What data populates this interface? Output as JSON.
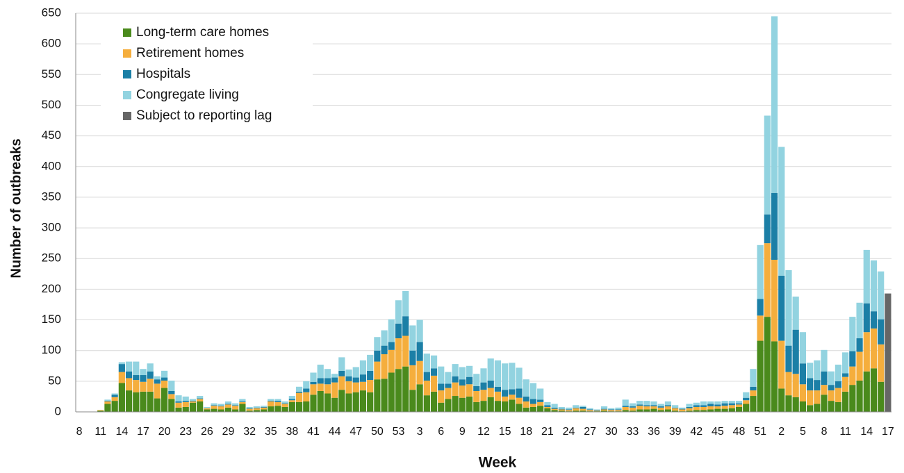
{
  "chart_data": {
    "type": "stacked-bar",
    "x_label": "Week",
    "y_label": "Number of outbreaks",
    "categories": [
      "8",
      null,
      null,
      "11",
      null,
      null,
      "14",
      null,
      null,
      "17",
      null,
      null,
      "20",
      null,
      null,
      "23",
      null,
      null,
      "26",
      null,
      null,
      "29",
      null,
      null,
      "32",
      null,
      null,
      "35",
      null,
      null,
      "38",
      null,
      null,
      "41",
      null,
      null,
      "44",
      null,
      null,
      "47",
      null,
      null,
      "50",
      null,
      null,
      "53",
      null,
      null,
      "3",
      null,
      null,
      "6",
      null,
      null,
      "9",
      null,
      null,
      "12",
      null,
      null,
      "15",
      null,
      null,
      "18",
      null,
      null,
      "21",
      null,
      null,
      "24",
      null,
      null,
      "27",
      null,
      null,
      "30",
      null,
      null,
      "33",
      null,
      null,
      "36",
      null,
      null,
      "39",
      null,
      null,
      "42",
      null,
      null,
      "45",
      null,
      null,
      "48",
      null,
      null,
      "51",
      null,
      null,
      "2",
      null,
      null,
      "5",
      null,
      null,
      "8",
      null,
      null,
      "11",
      null,
      null,
      "14",
      null,
      null,
      "17"
    ],
    "series": [
      {
        "name": "Long-term care homes",
        "color": "#4a8a1c",
        "values": [
          0,
          0,
          0,
          2,
          13,
          18,
          47,
          35,
          32,
          33,
          33,
          22,
          39,
          21,
          7,
          8,
          15,
          17,
          4,
          5,
          4,
          7,
          4,
          13,
          2,
          3,
          4,
          9,
          10,
          8,
          16,
          16,
          17,
          28,
          34,
          30,
          23,
          36,
          30,
          32,
          35,
          32,
          53,
          54,
          64,
          70,
          74,
          36,
          45,
          27,
          33,
          15,
          21,
          26,
          23,
          25,
          16,
          18,
          24,
          18,
          17,
          20,
          13,
          7,
          8,
          10,
          6,
          3,
          2,
          1,
          2,
          2,
          1,
          1,
          2,
          1,
          1,
          3,
          2,
          4,
          4,
          5,
          3,
          4,
          2,
          1,
          2,
          3,
          3,
          4,
          5,
          5,
          6,
          8,
          13,
          26,
          116,
          155,
          115,
          38,
          27,
          24,
          17,
          11,
          13,
          28,
          18,
          16,
          33,
          44,
          51,
          66,
          71,
          49,
          null
        ]
      },
      {
        "name": "Retirement homes",
        "color": "#f5ae3d",
        "values": [
          0,
          0,
          0,
          1,
          4,
          6,
          18,
          20,
          20,
          16,
          21,
          24,
          12,
          8,
          8,
          8,
          2,
          4,
          2,
          5,
          5,
          5,
          6,
          3,
          3,
          3,
          3,
          8,
          6,
          5,
          3,
          15,
          15,
          17,
          12,
          15,
          25,
          22,
          20,
          16,
          14,
          20,
          29,
          40,
          37,
          50,
          50,
          40,
          38,
          24,
          26,
          20,
          18,
          22,
          20,
          20,
          18,
          18,
          15,
          15,
          8,
          8,
          10,
          10,
          5,
          6,
          2,
          2,
          2,
          2,
          4,
          3,
          2,
          1,
          2,
          2,
          2,
          5,
          5,
          6,
          5,
          4,
          4,
          5,
          4,
          3,
          4,
          5,
          5,
          5,
          4,
          5,
          5,
          4,
          6,
          9,
          41,
          120,
          133,
          78,
          38,
          38,
          28,
          24,
          22,
          16,
          17,
          23,
          24,
          30,
          47,
          64,
          65,
          61,
          null
        ]
      },
      {
        "name": "Hospitals",
        "color": "#1b7fa6",
        "values": [
          0,
          0,
          0,
          0,
          1,
          4,
          13,
          11,
          8,
          11,
          12,
          7,
          5,
          5,
          2,
          2,
          1,
          1,
          0,
          1,
          1,
          1,
          1,
          1,
          1,
          1,
          1,
          1,
          2,
          1,
          2,
          2,
          6,
          4,
          9,
          10,
          8,
          9,
          8,
          8,
          12,
          15,
          18,
          14,
          13,
          24,
          32,
          24,
          31,
          14,
          12,
          11,
          7,
          10,
          10,
          12,
          8,
          12,
          12,
          8,
          11,
          9,
          15,
          8,
          8,
          4,
          3,
          2,
          1,
          1,
          1,
          3,
          1,
          1,
          1,
          1,
          1,
          2,
          2,
          2,
          2,
          2,
          2,
          2,
          1,
          1,
          2,
          3,
          3,
          4,
          3,
          4,
          3,
          2,
          4,
          6,
          27,
          47,
          109,
          106,
          43,
          72,
          34,
          20,
          17,
          22,
          9,
          11,
          6,
          25,
          22,
          47,
          28,
          41,
          null
        ]
      },
      {
        "name": "Congregate living",
        "color": "#92d3e0",
        "values": [
          0,
          0,
          0,
          0,
          2,
          2,
          3,
          16,
          22,
          10,
          13,
          5,
          11,
          17,
          10,
          7,
          3,
          4,
          2,
          3,
          3,
          4,
          3,
          4,
          2,
          2,
          2,
          3,
          3,
          3,
          5,
          8,
          12,
          15,
          22,
          15,
          6,
          22,
          11,
          17,
          23,
          26,
          22,
          25,
          37,
          38,
          41,
          41,
          36,
          30,
          21,
          28,
          19,
          20,
          20,
          18,
          20,
          23,
          36,
          43,
          43,
          43,
          34,
          28,
          26,
          18,
          5,
          6,
          3,
          3,
          4,
          2,
          2,
          1,
          4,
          2,
          3,
          10,
          5,
          6,
          7,
          6,
          4,
          6,
          4,
          2,
          5,
          4,
          6,
          4,
          5,
          4,
          4,
          4,
          9,
          29,
          88,
          161,
          288,
          210,
          123,
          54,
          51,
          25,
          32,
          35,
          22,
          27,
          34,
          56,
          58,
          87,
          83,
          78,
          null
        ]
      },
      {
        "name": "Subject to reporting lag",
        "color": "#666666",
        "values": [
          null,
          null,
          null,
          null,
          null,
          null,
          null,
          null,
          null,
          null,
          null,
          null,
          null,
          null,
          null,
          null,
          null,
          null,
          null,
          null,
          null,
          null,
          null,
          null,
          null,
          null,
          null,
          null,
          null,
          null,
          null,
          null,
          null,
          null,
          null,
          null,
          null,
          null,
          null,
          null,
          null,
          null,
          null,
          null,
          null,
          null,
          null,
          null,
          null,
          null,
          null,
          null,
          null,
          null,
          null,
          null,
          null,
          null,
          null,
          null,
          null,
          null,
          null,
          null,
          null,
          null,
          null,
          null,
          null,
          null,
          null,
          null,
          null,
          null,
          null,
          null,
          null,
          null,
          null,
          null,
          null,
          null,
          null,
          null,
          null,
          null,
          null,
          null,
          null,
          null,
          null,
          null,
          null,
          null,
          null,
          null,
          null,
          null,
          null,
          null,
          null,
          null,
          null,
          null,
          null,
          null,
          null,
          null,
          null,
          null,
          null,
          null,
          null,
          null,
          193
        ]
      }
    ],
    "ylim": [
      0,
      650
    ],
    "yticks": [
      0,
      50,
      100,
      150,
      200,
      250,
      300,
      350,
      400,
      450,
      500,
      550,
      600,
      650
    ],
    "grid": true,
    "legend": "upper left"
  }
}
